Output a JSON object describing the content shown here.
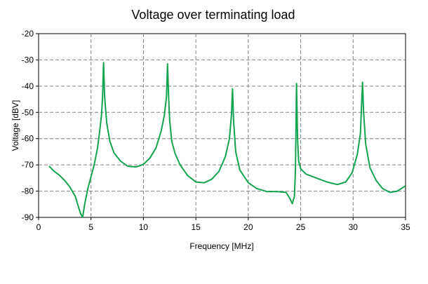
{
  "chart_data": {
    "type": "line",
    "title": "Voltage over terminating load",
    "xlabel": "Frequency [MHz]",
    "ylabel": "Voltage [dBV]",
    "xlim": [
      0,
      35
    ],
    "ylim": [
      -90,
      -20
    ],
    "xticks": [
      "0",
      "5",
      "10",
      "15",
      "20",
      "25",
      "30",
      "35"
    ],
    "yticks": [
      "-20",
      "-30",
      "-40",
      "-50",
      "-60",
      "-70",
      "-80",
      "-90"
    ],
    "grid": true,
    "legend": "none",
    "colors": {
      "series": "#12a44f"
    },
    "series": [
      {
        "x": [
          1.0,
          1.5,
          2.0,
          2.5,
          3.0,
          3.5,
          3.8,
          4.0,
          4.2,
          4.4,
          4.7,
          5.0,
          5.3,
          5.6,
          5.8,
          6.0,
          6.1,
          6.2,
          6.3,
          6.5,
          6.8,
          7.2,
          7.8,
          8.5,
          9.3,
          10.0,
          10.6,
          11.2,
          11.7,
          12.0,
          12.2,
          12.3,
          12.4,
          12.5,
          12.7,
          13.0,
          13.5,
          14.2,
          15.0,
          15.8,
          16.5,
          17.2,
          17.8,
          18.2,
          18.4,
          18.5,
          18.6,
          18.8,
          19.2,
          20.0,
          20.8,
          21.8,
          22.8,
          23.6,
          24.0,
          24.2,
          24.4,
          24.5,
          24.6,
          24.7,
          24.8,
          25.0,
          25.5,
          26.5,
          27.5,
          28.5,
          29.3,
          29.9,
          30.4,
          30.7,
          30.8,
          30.9,
          31.0,
          31.2,
          31.6,
          32.2,
          32.8,
          33.5,
          34.2,
          35.0
        ],
        "y": [
          -70.5,
          -72.5,
          -74,
          -76,
          -78.5,
          -82,
          -86,
          -88.5,
          -90,
          -85,
          -79,
          -74.5,
          -70,
          -64,
          -58,
          -51,
          -44,
          -31,
          -44,
          -54,
          -61,
          -65.5,
          -68.5,
          -70.5,
          -70.8,
          -69.8,
          -67.5,
          -63.5,
          -57,
          -51,
          -44,
          -31.5,
          -44,
          -53,
          -61,
          -65.5,
          -70,
          -74,
          -76.5,
          -76.8,
          -75.5,
          -72.5,
          -67,
          -60,
          -51,
          -41,
          -53,
          -65,
          -72,
          -76.8,
          -79,
          -80.2,
          -80.2,
          -80.5,
          -83,
          -84.8,
          -82,
          -72,
          -39,
          -60,
          -68.5,
          -71.5,
          -73.5,
          -75,
          -76.5,
          -77.5,
          -76.5,
          -73,
          -66,
          -58,
          -48,
          -38.5,
          -50,
          -62,
          -71,
          -76,
          -79,
          -80.5,
          -80,
          -78
        ]
      }
    ]
  }
}
